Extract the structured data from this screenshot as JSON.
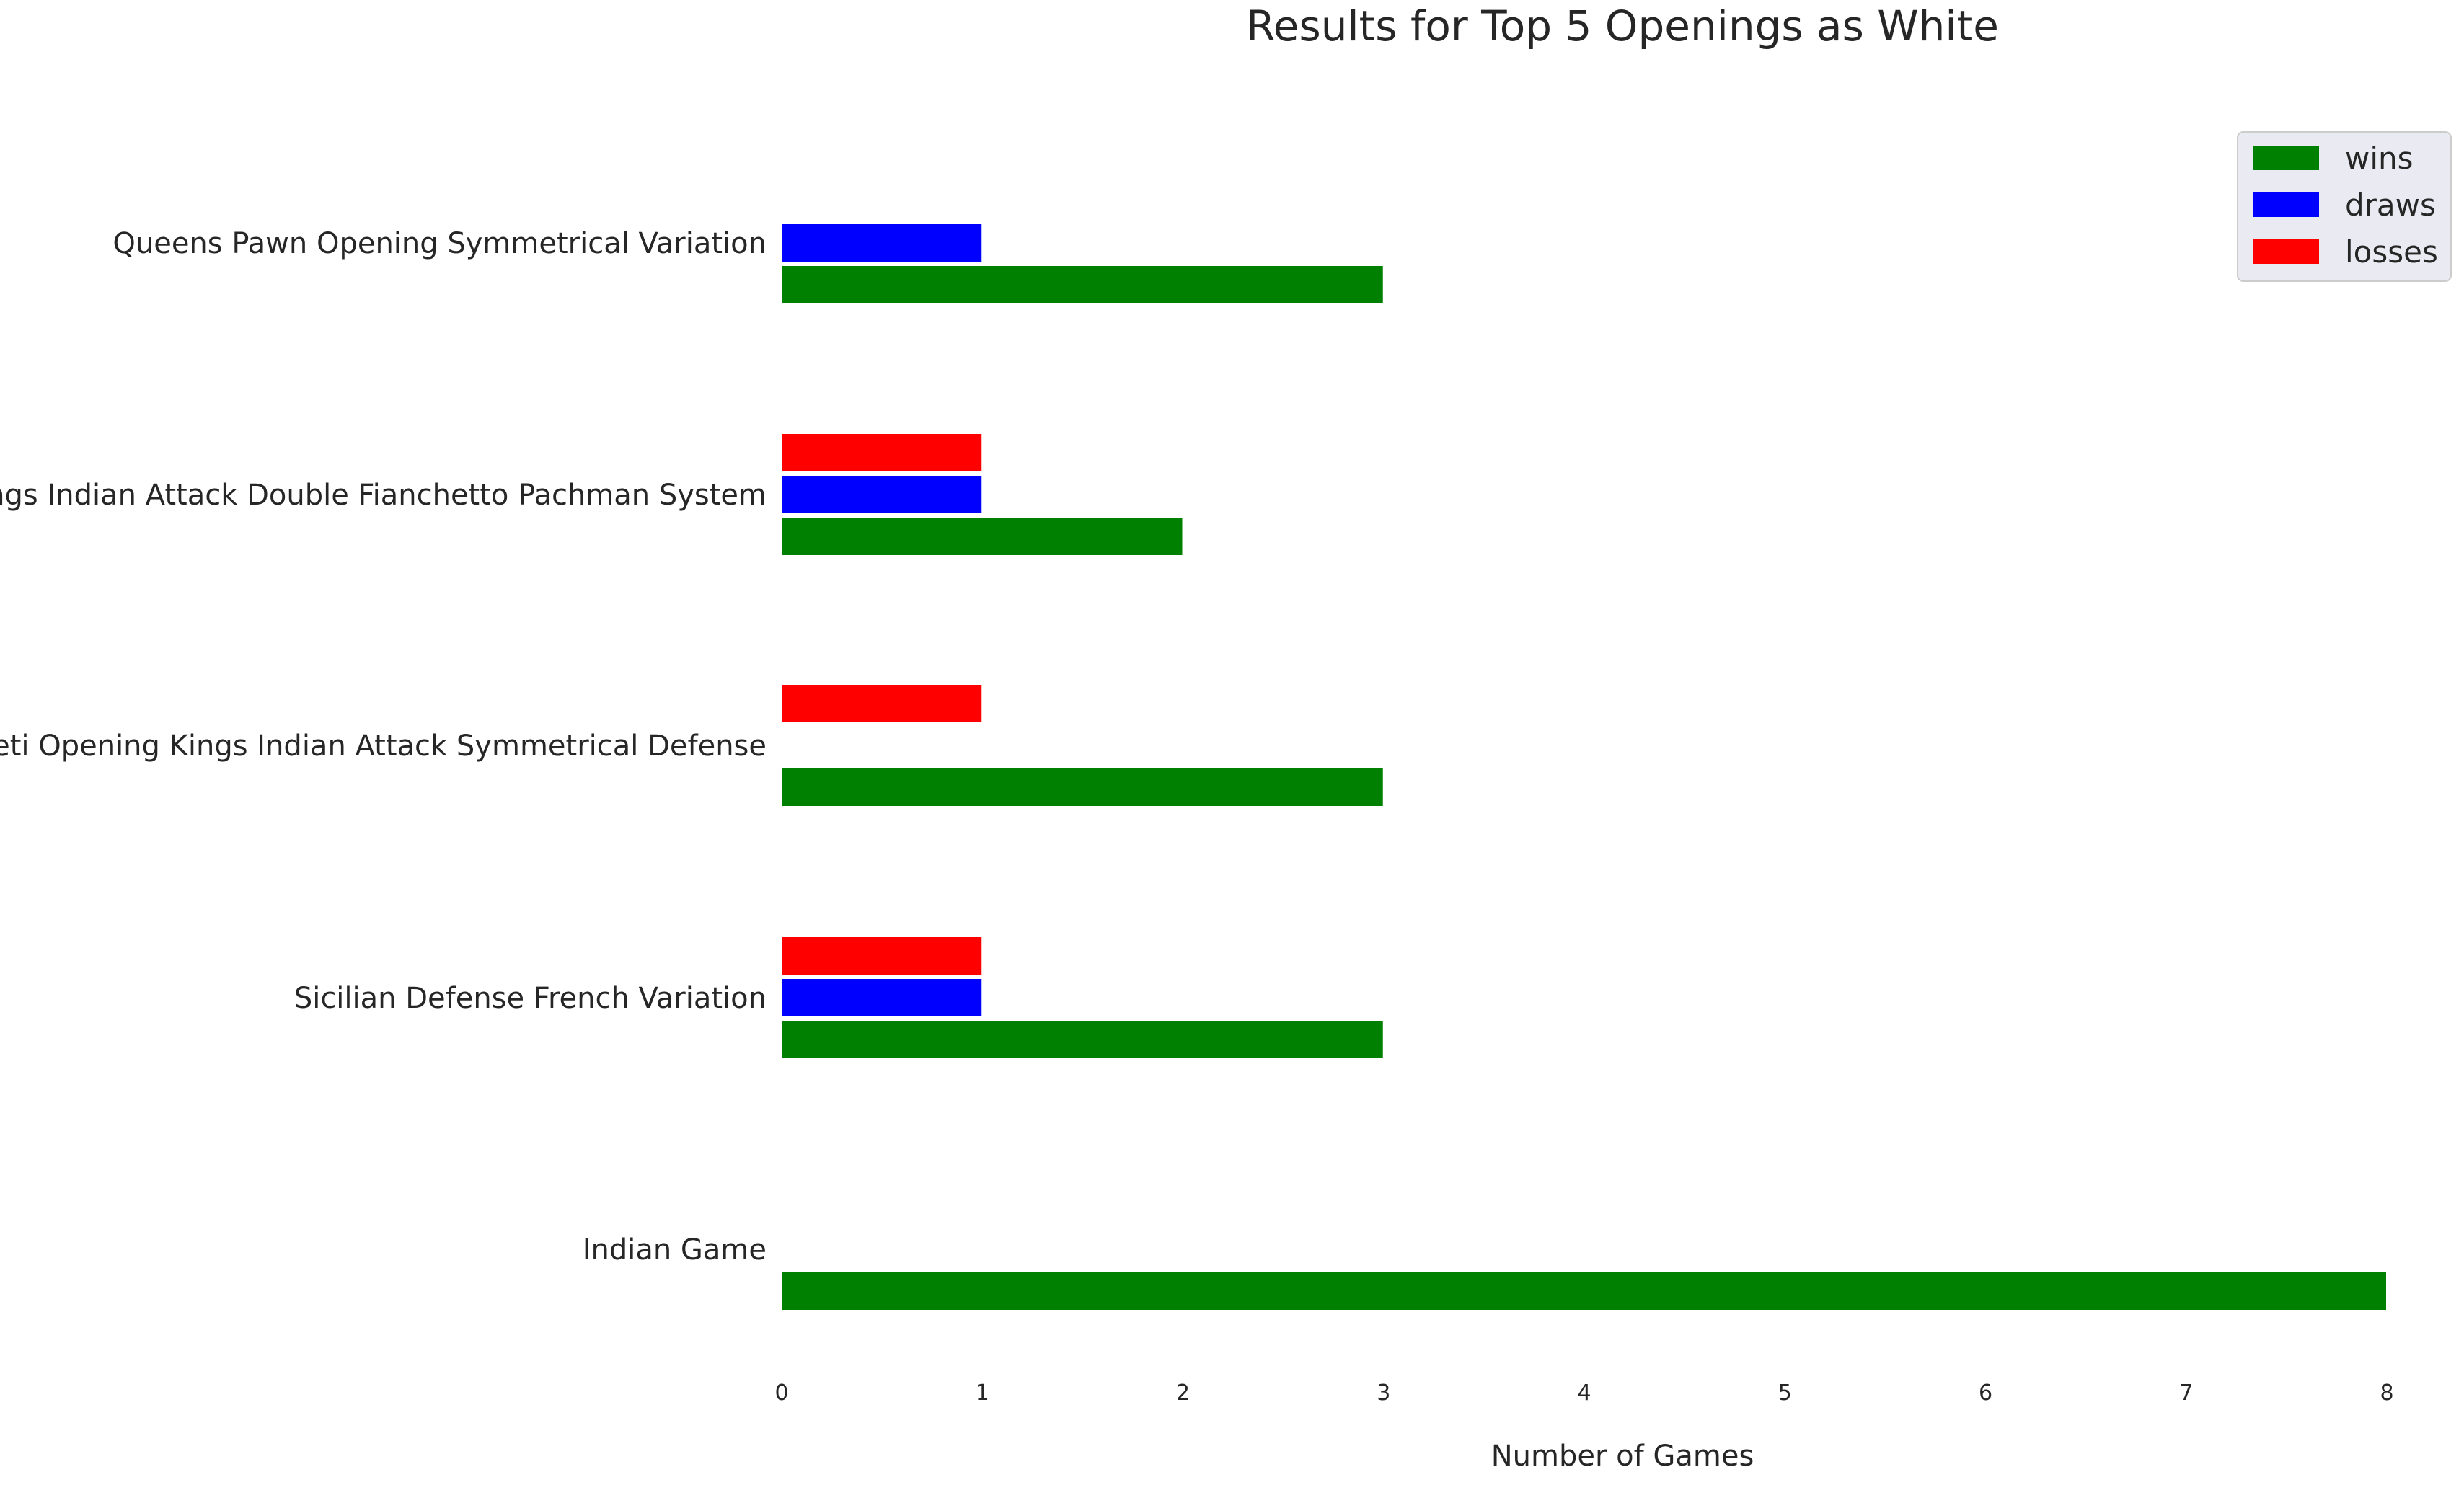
{
  "chart_data": {
    "type": "bar",
    "orientation": "horizontal",
    "title": "Results for Top 5 Openings as White",
    "xlabel": "Number of Games",
    "ylabel": "",
    "xlim": [
      0,
      8
    ],
    "xticks": [
      0,
      1,
      2,
      3,
      4,
      5,
      6,
      7,
      8
    ],
    "grid": false,
    "legend_position": "top-right",
    "categories": [
      "Indian Game",
      "Sicilian Defense French Variation",
      "Reti Opening Kings Indian Attack Symmetrical Defense",
      "Kings Indian Attack Double Fianchetto Pachman System",
      "Queens Pawn Opening Symmetrical Variation"
    ],
    "series": [
      {
        "name": "wins",
        "color": "#008000",
        "values": [
          8,
          3,
          3,
          2,
          3
        ]
      },
      {
        "name": "draws",
        "color": "#0000ff",
        "values": [
          0,
          1,
          0,
          1,
          1
        ]
      },
      {
        "name": "losses",
        "color": "#ff0000",
        "values": [
          0,
          1,
          1,
          1,
          0
        ]
      }
    ]
  }
}
